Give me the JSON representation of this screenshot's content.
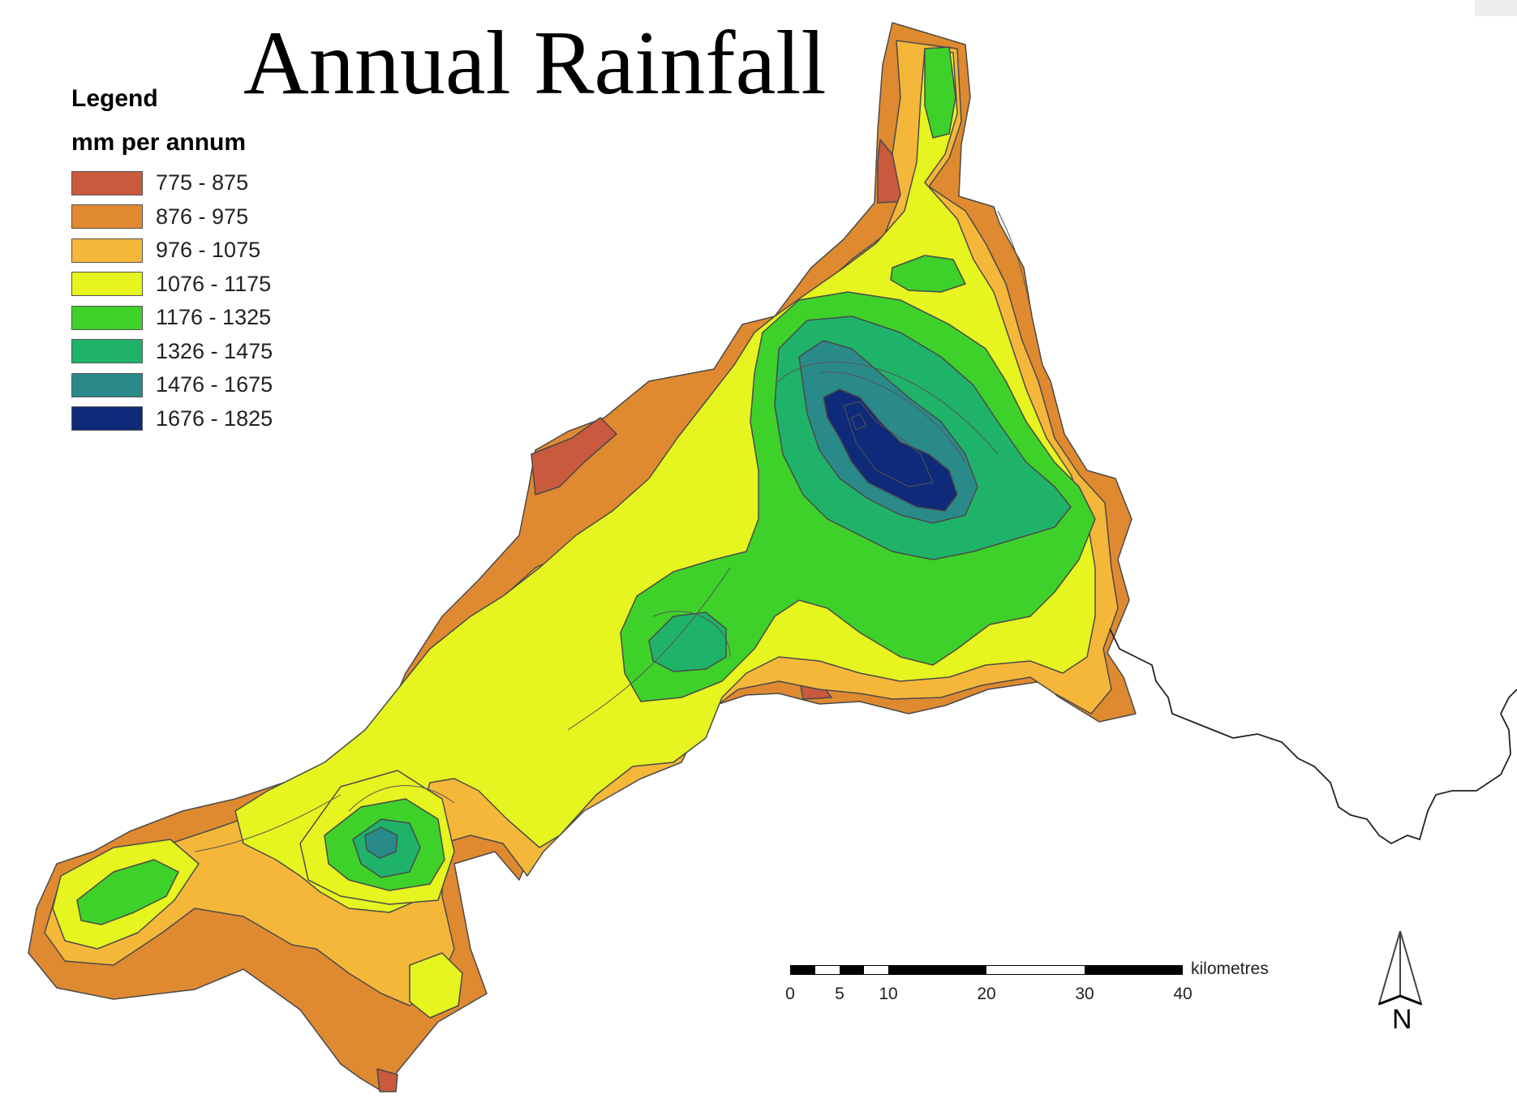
{
  "title": "Annual Rainfall",
  "legend": {
    "heading": "Legend",
    "subheading": "mm per annum",
    "classes": [
      {
        "label": "775 - 875",
        "color": "#c95a3e"
      },
      {
        "label": "876 - 975",
        "color": "#df8a30"
      },
      {
        "label": "976 - 1075",
        "color": "#f5b73a"
      },
      {
        "label": "1076 - 1175",
        "color": "#e6f41f"
      },
      {
        "label": "1176 - 1325",
        "color": "#3ed12a"
      },
      {
        "label": "1326 - 1475",
        "color": "#1fb36a"
      },
      {
        "label": "1476 - 1675",
        "color": "#2a8a8a"
      },
      {
        "label": "1676 - 1825",
        "color": "#0f2a78"
      }
    ]
  },
  "scale_bar": {
    "unit": "kilometres",
    "ticks": [
      "0",
      "5",
      "10",
      "20",
      "30",
      "40"
    ]
  },
  "north_arrow": {
    "label": "N",
    "icon": "north-arrow-icon"
  }
}
